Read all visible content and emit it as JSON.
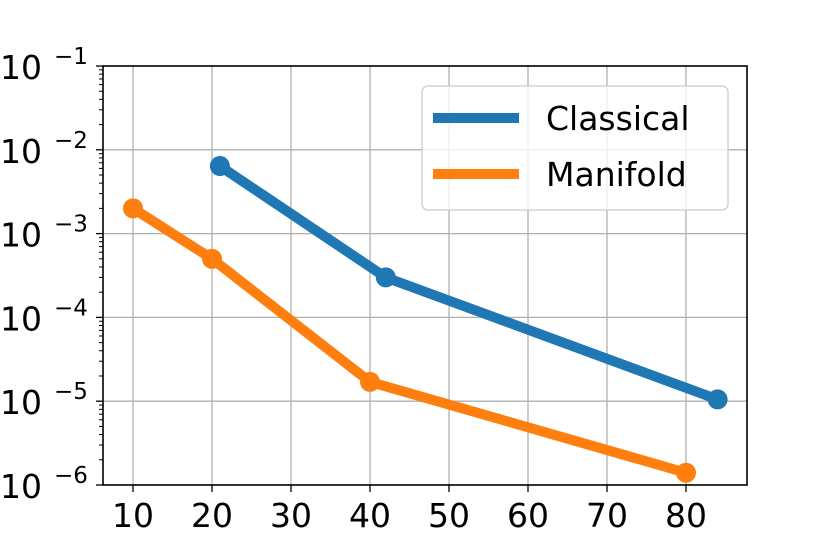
{
  "chart_data": {
    "type": "line",
    "title": "",
    "xlabel": "",
    "ylabel": "",
    "xscale": "linear",
    "yscale": "log",
    "xlim": [
      6.2,
      87.5
    ],
    "ylim": [
      1e-06,
      0.1
    ],
    "xticks": [
      10,
      20,
      30,
      40,
      50,
      60,
      70,
      80
    ],
    "xtick_labels": [
      "10",
      "20",
      "30",
      "40",
      "50",
      "60",
      "70",
      "80"
    ],
    "yticks": [
      1e-06,
      1e-05,
      0.0001,
      0.001,
      0.01,
      0.1
    ],
    "ytick_labels": [
      {
        "base": "10",
        "exp": "−6"
      },
      {
        "base": "10",
        "exp": "−5"
      },
      {
        "base": "10",
        "exp": "−4"
      },
      {
        "base": "10",
        "exp": "−3"
      },
      {
        "base": "10",
        "exp": "−2"
      },
      {
        "base": "10",
        "exp": "−1"
      }
    ],
    "grid": true,
    "legend_position": "upper right",
    "series": [
      {
        "name": "Classical",
        "color": "#1f77b4",
        "x": [
          21,
          42,
          84
        ],
        "y": [
          0.0064,
          0.0003,
          1.05e-05
        ]
      },
      {
        "name": "Manifold",
        "color": "#ff7f0e",
        "x": [
          10,
          20,
          40,
          80
        ],
        "y": [
          0.002,
          0.0005,
          1.7e-05,
          1.4e-06
        ]
      }
    ]
  }
}
